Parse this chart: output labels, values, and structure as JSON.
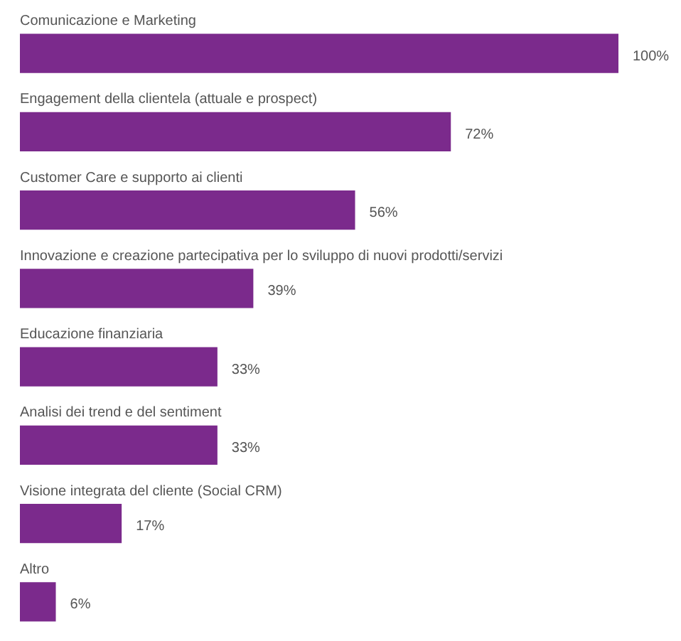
{
  "chart_data": {
    "type": "bar",
    "orientation": "horizontal",
    "categories": [
      "Comunicazione e Marketing",
      "Engagement della clientela (attuale e prospect)",
      "Customer Care e supporto ai clienti",
      "Innovazione e creazione partecipativa per lo sviluppo di nuovi prodotti/servizi",
      "Educazione finanziaria",
      "Analisi dei trend e del sentiment",
      "Visione integrata del cliente (Social CRM)",
      "Altro"
    ],
    "values": [
      100,
      72,
      56,
      39,
      33,
      33,
      17,
      6
    ],
    "value_labels": [
      "100%",
      "72%",
      "56%",
      "39%",
      "33%",
      "33%",
      "17%",
      "6%"
    ],
    "color": "#7b2a8c",
    "legend": false,
    "tick_labels": false
  }
}
